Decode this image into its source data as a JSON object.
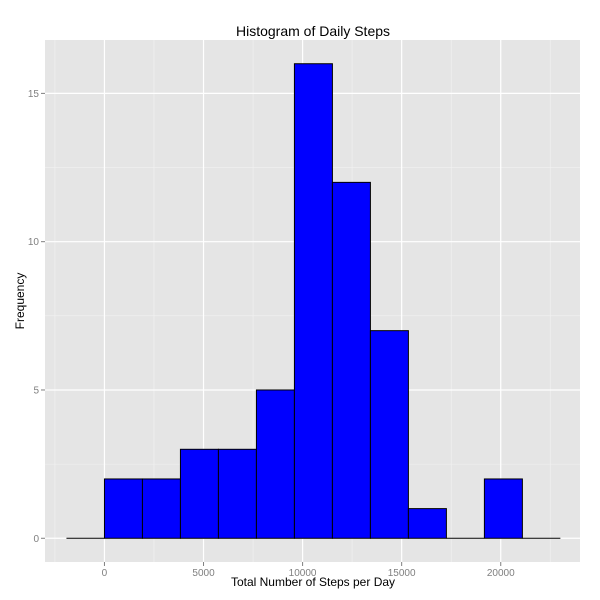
{
  "colors": {
    "panel_background": "#e5e5e5",
    "grid_major": "#ffffff",
    "grid_minor": "#f2f2f2",
    "bar_fill": "#0000ff",
    "bar_stroke": "#000000",
    "tick_text": "#7f7f7f",
    "tick_mark": "#7f7f7f"
  },
  "chart_data": {
    "type": "bar",
    "title": "Histogram of Daily Steps",
    "xlabel": "Total Number of Steps per Day",
    "ylabel": "Frequency",
    "bin_width": 1917.5,
    "bin_edges": [
      -1917.5,
      0,
      1917.5,
      3835,
      5752.5,
      7670,
      9587.5,
      11505,
      13422.5,
      15340,
      17257.5,
      19175,
      21092.5,
      23010
    ],
    "bin_edges_note_removed": true,
    "series": [
      {
        "values": [
          0,
          2,
          2,
          3,
          3,
          5,
          16,
          12,
          7,
          1,
          0,
          2,
          0
        ]
      }
    ],
    "xlim": [
      -3000,
      24000
    ],
    "ylim": [
      -0.8,
      16.8
    ],
    "x_ticks": [
      0,
      5000,
      10000,
      15000,
      20000
    ],
    "x_tick_labels": [
      "0",
      "5000",
      "10000",
      "15000",
      "20000"
    ],
    "y_ticks": [
      0,
      5,
      10,
      15
    ],
    "y_tick_labels": [
      "0",
      "5",
      "10",
      "15"
    ],
    "grid": true,
    "legend": "none"
  }
}
